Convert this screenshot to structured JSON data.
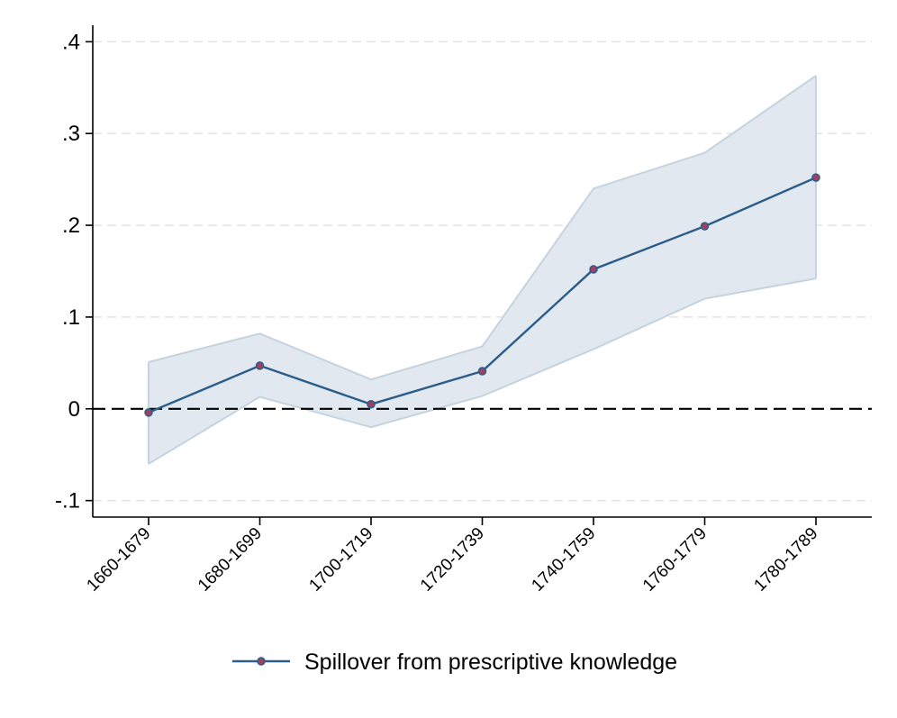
{
  "chart_data": {
    "type": "line",
    "categories": [
      "1660-1679",
      "1680-1699",
      "1700-1719",
      "1720-1739",
      "1740-1759",
      "1760-1779",
      "1780-1789"
    ],
    "series": [
      {
        "name": "Spillover from prescriptive knowledge",
        "values": [
          -0.004,
          0.047,
          0.005,
          0.041,
          0.152,
          0.199,
          0.252
        ],
        "ci_lower": [
          -0.06,
          0.013,
          -0.02,
          0.014,
          0.065,
          0.12,
          0.142
        ],
        "ci_upper": [
          0.051,
          0.082,
          0.032,
          0.068,
          0.24,
          0.279,
          0.363
        ]
      }
    ],
    "y_ticks": [
      -0.1,
      0,
      0.1,
      0.2,
      0.3,
      0.4
    ],
    "y_tick_labels": [
      "-.1",
      "0",
      ".1",
      ".2",
      ".3",
      ".4"
    ],
    "ylim": [
      -0.118,
      0.418
    ],
    "reference_line": 0,
    "grid": true,
    "legend_position": "bottom",
    "colors": {
      "line": "#2c5d8a",
      "marker_fill": "#a04060",
      "ci_fill": "#e1e8f0",
      "ci_edge": "#c5d3df",
      "grid": "#e3e3e3",
      "reference": "#000000"
    }
  }
}
